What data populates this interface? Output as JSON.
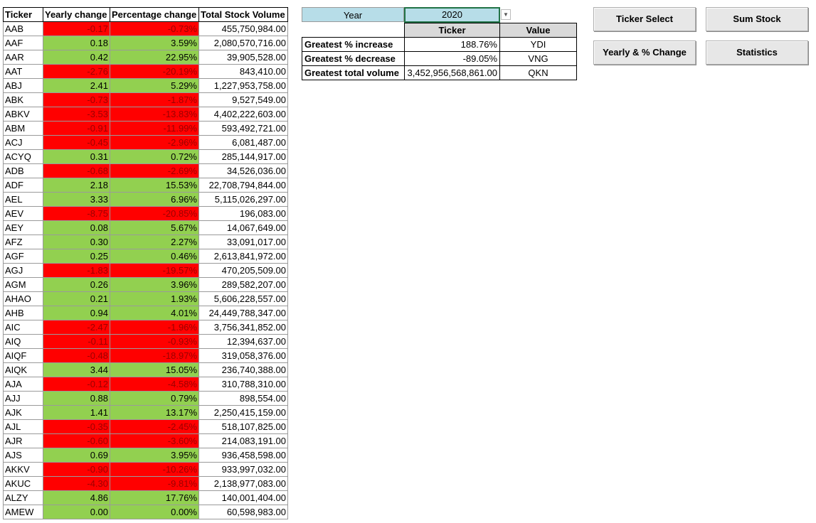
{
  "main_table": {
    "headers": [
      "Ticker",
      "Yearly change",
      "Percentage change",
      "Total Stock Volume"
    ],
    "rows": [
      {
        "ticker": "AAB",
        "change": "-0.17",
        "pct": "-0.73%",
        "volume": "455,750,984.00",
        "sign": "neg"
      },
      {
        "ticker": "AAF",
        "change": "0.18",
        "pct": "3.59%",
        "volume": "2,080,570,716.00",
        "sign": "pos"
      },
      {
        "ticker": "AAR",
        "change": "0.42",
        "pct": "22.95%",
        "volume": "39,905,528.00",
        "sign": "pos"
      },
      {
        "ticker": "AAT",
        "change": "-2.76",
        "pct": "-20.19%",
        "volume": "843,410.00",
        "sign": "neg"
      },
      {
        "ticker": "ABJ",
        "change": "2.41",
        "pct": "5.29%",
        "volume": "1,227,953,758.00",
        "sign": "pos"
      },
      {
        "ticker": "ABK",
        "change": "-0.73",
        "pct": "-1.87%",
        "volume": "9,527,549.00",
        "sign": "neg"
      },
      {
        "ticker": "ABKV",
        "change": "-3.53",
        "pct": "-13.83%",
        "volume": "4,402,222,603.00",
        "sign": "neg"
      },
      {
        "ticker": "ABM",
        "change": "-0.91",
        "pct": "-11.99%",
        "volume": "593,492,721.00",
        "sign": "neg"
      },
      {
        "ticker": "ACJ",
        "change": "-0.45",
        "pct": "-2.96%",
        "volume": "6,081,487.00",
        "sign": "neg"
      },
      {
        "ticker": "ACYQ",
        "change": "0.31",
        "pct": "0.72%",
        "volume": "285,144,917.00",
        "sign": "pos"
      },
      {
        "ticker": "ADB",
        "change": "-0.68",
        "pct": "-2.69%",
        "volume": "34,526,036.00",
        "sign": "neg"
      },
      {
        "ticker": "ADF",
        "change": "2.18",
        "pct": "15.53%",
        "volume": "22,708,794,844.00",
        "sign": "pos"
      },
      {
        "ticker": "AEL",
        "change": "3.33",
        "pct": "6.96%",
        "volume": "5,115,026,297.00",
        "sign": "pos"
      },
      {
        "ticker": "AEV",
        "change": "-8.75",
        "pct": "-20.85%",
        "volume": "196,083.00",
        "sign": "neg"
      },
      {
        "ticker": "AEY",
        "change": "0.08",
        "pct": "5.67%",
        "volume": "14,067,649.00",
        "sign": "pos"
      },
      {
        "ticker": "AFZ",
        "change": "0.30",
        "pct": "2.27%",
        "volume": "33,091,017.00",
        "sign": "pos"
      },
      {
        "ticker": "AGF",
        "change": "0.25",
        "pct": "0.46%",
        "volume": "2,613,841,972.00",
        "sign": "pos"
      },
      {
        "ticker": "AGJ",
        "change": "-1.83",
        "pct": "-19.57%",
        "volume": "470,205,509.00",
        "sign": "neg"
      },
      {
        "ticker": "AGM",
        "change": "0.26",
        "pct": "3.96%",
        "volume": "289,582,207.00",
        "sign": "pos"
      },
      {
        "ticker": "AHAO",
        "change": "0.21",
        "pct": "1.93%",
        "volume": "5,606,228,557.00",
        "sign": "pos"
      },
      {
        "ticker": "AHB",
        "change": "0.94",
        "pct": "4.01%",
        "volume": "24,449,788,347.00",
        "sign": "pos"
      },
      {
        "ticker": "AIC",
        "change": "-2.47",
        "pct": "-1.96%",
        "volume": "3,756,341,852.00",
        "sign": "neg"
      },
      {
        "ticker": "AIQ",
        "change": "-0.11",
        "pct": "-0.93%",
        "volume": "12,394,637.00",
        "sign": "neg"
      },
      {
        "ticker": "AIQF",
        "change": "-0.48",
        "pct": "-18.97%",
        "volume": "319,058,376.00",
        "sign": "neg"
      },
      {
        "ticker": "AIQK",
        "change": "3.44",
        "pct": "15.05%",
        "volume": "236,740,388.00",
        "sign": "pos"
      },
      {
        "ticker": "AJA",
        "change": "-0.12",
        "pct": "-4.58%",
        "volume": "310,788,310.00",
        "sign": "neg"
      },
      {
        "ticker": "AJJ",
        "change": "0.88",
        "pct": "0.79%",
        "volume": "898,554.00",
        "sign": "pos"
      },
      {
        "ticker": "AJK",
        "change": "1.41",
        "pct": "13.17%",
        "volume": "2,250,415,159.00",
        "sign": "pos"
      },
      {
        "ticker": "AJL",
        "change": "-0.35",
        "pct": "-2.45%",
        "volume": "518,107,825.00",
        "sign": "neg"
      },
      {
        "ticker": "AJR",
        "change": "-0.60",
        "pct": "-3.60%",
        "volume": "214,083,191.00",
        "sign": "neg"
      },
      {
        "ticker": "AJS",
        "change": "0.69",
        "pct": "3.95%",
        "volume": "936,458,598.00",
        "sign": "pos"
      },
      {
        "ticker": "AKKV",
        "change": "-0.90",
        "pct": "-10.26%",
        "volume": "933,997,032.00",
        "sign": "neg"
      },
      {
        "ticker": "AKUC",
        "change": "-4.30",
        "pct": "-9.81%",
        "volume": "2,138,977,083.00",
        "sign": "neg"
      },
      {
        "ticker": "ALZY",
        "change": "4.86",
        "pct": "17.76%",
        "volume": "140,001,404.00",
        "sign": "pos"
      },
      {
        "ticker": "AMEW",
        "change": "0.00",
        "pct": "0.00%",
        "volume": "60,598,983.00",
        "sign": "pos"
      }
    ]
  },
  "year_selector": {
    "label": "Year",
    "value": "2020"
  },
  "summary": {
    "headers": [
      "Ticker",
      "Value"
    ],
    "rows": [
      {
        "label": "Greatest % increase",
        "ticker": "188.76%",
        "value": "YDI"
      },
      {
        "label": "Greatest % decrease",
        "ticker": "-89.05%",
        "value": "VNG"
      },
      {
        "label": "Greatest total volume",
        "ticker": "3,452,956,568,861.00",
        "value": "QKN"
      }
    ]
  },
  "buttons": {
    "ticker_select": "Ticker Select",
    "sum_stock": "Sum Stock",
    "yearly_change": "Yearly & % Change",
    "statistics": "Statistics"
  },
  "colors": {
    "positive": "#92d050",
    "negative": "#ff0000",
    "selector": "#b7dde8"
  }
}
